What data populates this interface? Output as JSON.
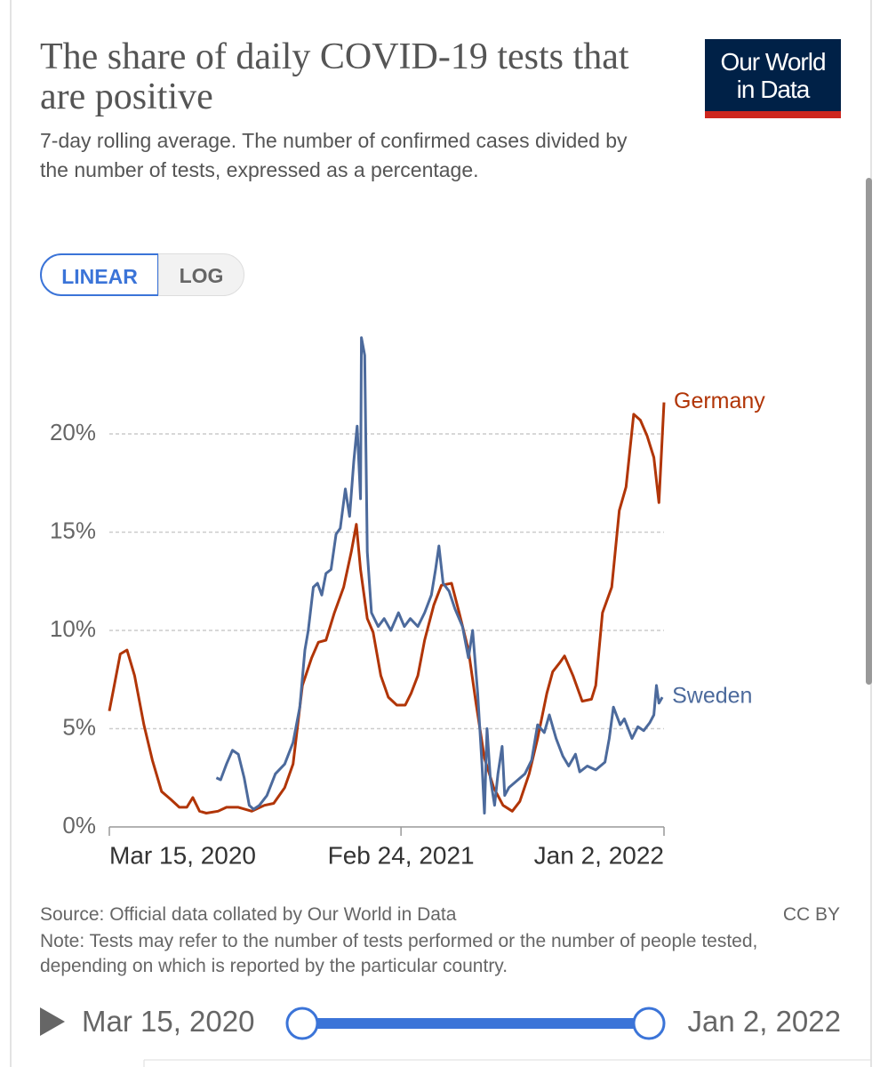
{
  "header": {
    "title": "The share of daily COVID-19 tests that are positive",
    "subtitle": "7-day rolling average. The number of confirmed cases divided by the number of tests, expressed as a percentage."
  },
  "logo": {
    "text": "Our World in Data"
  },
  "controls": {
    "linear": "LINEAR",
    "log": "LOG"
  },
  "chart_data": {
    "type": "line",
    "series": [
      {
        "name": "Germany",
        "color": "#b13507",
        "x": [
          "2020-03-15",
          "2020-03-20",
          "2020-03-28",
          "2020-04-05",
          "2020-04-14",
          "2020-04-25",
          "2020-05-05",
          "2020-05-16",
          "2020-05-27",
          "2020-06-06",
          "2020-06-15",
          "2020-06-22",
          "2020-06-30",
          "2020-07-08",
          "2020-07-22",
          "2020-08-01",
          "2020-08-15",
          "2020-08-31",
          "2020-09-15",
          "2020-09-26",
          "2020-10-09",
          "2020-10-19",
          "2020-10-30",
          "2020-11-10",
          "2020-11-18",
          "2020-11-27",
          "2020-12-07",
          "2020-12-18",
          "2020-12-27",
          "2021-01-02",
          "2021-01-07",
          "2021-01-15",
          "2021-01-22",
          "2021-01-31",
          "2021-02-09",
          "2021-02-19",
          "2021-03-01",
          "2021-03-08",
          "2021-03-16",
          "2021-03-24",
          "2021-04-04",
          "2021-04-13",
          "2021-04-25",
          "2021-05-04",
          "2021-05-15",
          "2021-05-24",
          "2021-06-03",
          "2021-06-14",
          "2021-06-25",
          "2021-07-06",
          "2021-07-15",
          "2021-07-26",
          "2021-08-05",
          "2021-08-16",
          "2021-08-23",
          "2021-09-01",
          "2021-09-06",
          "2021-09-16",
          "2021-09-27",
          "2021-10-08",
          "2021-10-13",
          "2021-10-21",
          "2021-11-01",
          "2021-11-10",
          "2021-11-18",
          "2021-11-27",
          "2021-12-05",
          "2021-12-13",
          "2021-12-21",
          "2021-12-27",
          "2022-01-02"
        ],
        "values": [
          5.9,
          7.0,
          8.8,
          9.0,
          7.7,
          5.2,
          3.4,
          1.8,
          1.4,
          1.0,
          1.0,
          1.5,
          0.8,
          0.7,
          0.8,
          1.0,
          1.0,
          0.8,
          1.1,
          1.2,
          2.0,
          3.2,
          7.2,
          8.6,
          9.4,
          9.5,
          10.9,
          12.2,
          14.0,
          15.4,
          13.1,
          10.6,
          9.9,
          7.7,
          6.6,
          6.2,
          6.2,
          6.8,
          7.7,
          9.5,
          11.3,
          12.3,
          12.4,
          10.9,
          9.0,
          6.3,
          3.5,
          2.0,
          1.1,
          0.8,
          1.3,
          2.7,
          4.5,
          6.8,
          7.9,
          8.4,
          8.7,
          7.7,
          6.4,
          6.5,
          7.2,
          10.9,
          12.2,
          16.1,
          17.3,
          21.0,
          20.7,
          19.9,
          18.8,
          16.5,
          21.6
        ]
      },
      {
        "name": "Sweden",
        "color": "#4c6a9c",
        "x": [
          "2020-07-20",
          "2020-07-25",
          "2020-08-01",
          "2020-08-08",
          "2020-08-15",
          "2020-08-22",
          "2020-08-28",
          "2020-09-02",
          "2020-09-09",
          "2020-09-18",
          "2020-09-28",
          "2020-10-09",
          "2020-10-19",
          "2020-10-27",
          "2020-11-02",
          "2020-11-06",
          "2020-11-12",
          "2020-11-17",
          "2020-11-22",
          "2020-11-27",
          "2020-12-03",
          "2020-12-09",
          "2020-12-14",
          "2020-12-20",
          "2020-12-25",
          "2020-12-30",
          "2021-01-03",
          "2021-01-07",
          "2021-01-08",
          "2021-01-12",
          "2021-01-15",
          "2021-01-20",
          "2021-01-28",
          "2021-02-04",
          "2021-02-12",
          "2021-02-21",
          "2021-02-28",
          "2021-03-07",
          "2021-03-16",
          "2021-03-24",
          "2021-04-01",
          "2021-04-06",
          "2021-04-10",
          "2021-04-15",
          "2021-04-22",
          "2021-04-29",
          "2021-05-08",
          "2021-05-15",
          "2021-05-20",
          "2021-05-26",
          "2021-05-31",
          "2021-06-03",
          "2021-06-06",
          "2021-06-10",
          "2021-06-15",
          "2021-06-19",
          "2021-06-24",
          "2021-06-27",
          "2021-07-02",
          "2021-07-10",
          "2021-07-21",
          "2021-07-29",
          "2021-08-05",
          "2021-08-13",
          "2021-08-19",
          "2021-08-27",
          "2021-09-04",
          "2021-09-11",
          "2021-09-19",
          "2021-09-24",
          "2021-10-03",
          "2021-10-13",
          "2021-10-24",
          "2021-10-29",
          "2021-11-03",
          "2021-11-11",
          "2021-11-16",
          "2021-11-25",
          "2021-12-02",
          "2021-12-09",
          "2021-12-16",
          "2021-12-21",
          "2021-12-24",
          "2021-12-27",
          "2021-12-31"
        ],
        "values": [
          2.5,
          2.4,
          3.2,
          3.9,
          3.7,
          2.5,
          1.1,
          0.9,
          1.1,
          1.6,
          2.7,
          3.2,
          4.3,
          6.1,
          9.0,
          10.0,
          12.2,
          12.4,
          11.8,
          12.9,
          13.1,
          14.9,
          15.2,
          17.2,
          15.8,
          18.6,
          20.4,
          16.7,
          24.9,
          24.0,
          14.0,
          10.9,
          10.2,
          10.6,
          10.0,
          10.9,
          10.2,
          10.6,
          10.2,
          10.9,
          11.8,
          13.1,
          14.3,
          12.4,
          12.0,
          11.1,
          10.2,
          8.6,
          10.0,
          6.8,
          3.2,
          0.7,
          5.0,
          2.5,
          1.1,
          2.7,
          4.1,
          1.6,
          2.0,
          2.3,
          2.7,
          3.4,
          5.2,
          4.8,
          5.7,
          4.5,
          3.6,
          3.1,
          3.7,
          2.8,
          3.1,
          2.9,
          3.3,
          4.5,
          6.1,
          5.2,
          5.5,
          4.5,
          5.1,
          4.9,
          5.3,
          5.7,
          7.2,
          6.3,
          6.6
        ]
      }
    ],
    "xlim": [
      "2020-03-15",
      "2022-01-02"
    ],
    "xticks": [
      {
        "value": "2020-03-15",
        "label": "Mar 15, 2020"
      },
      {
        "value": "2021-02-24",
        "label": "Feb 24, 2021"
      },
      {
        "value": "2022-01-02",
        "label": "Jan 2, 2022"
      }
    ],
    "ylim": [
      0,
      25
    ],
    "yticks": [
      {
        "value": 0,
        "label": "0%"
      },
      {
        "value": 5,
        "label": "5%"
      },
      {
        "value": 10,
        "label": "10%"
      },
      {
        "value": 15,
        "label": "15%"
      },
      {
        "value": 20,
        "label": "20%"
      }
    ],
    "grid": true
  },
  "footer": {
    "source": "Source: Official data collated by Our World in Data",
    "license": "CC BY",
    "note": "Note: Tests may refer to the number of tests performed or the number of people tested, depending on which is reported by the particular country."
  },
  "timeline": {
    "start": "Mar 15, 2020",
    "end": "Jan 2, 2022"
  }
}
